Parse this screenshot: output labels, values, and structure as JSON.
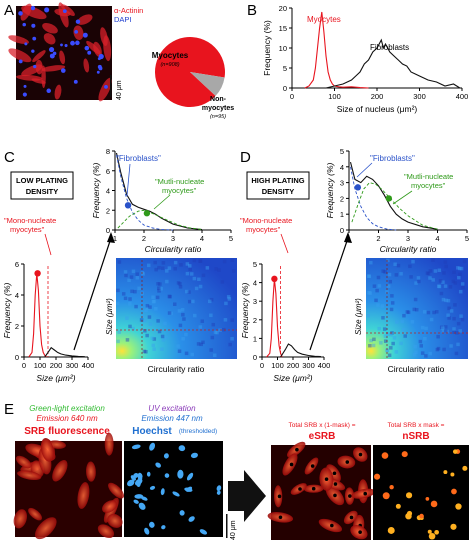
{
  "panels": {
    "A": {
      "label": "A",
      "stain_1": "α-Actinin",
      "stain_2": "DAPI",
      "scale": "40 μm",
      "pie": {
        "myocytes_label": "Myocytes",
        "myocytes_n": "(n=908)",
        "non_label_1": "Non-",
        "non_label_2": "myocytes",
        "non_n": "(n=95)"
      }
    },
    "B": {
      "label": "B",
      "myocytes_label": "Myocytes",
      "fibroblasts_label": "Fibroblasts"
    },
    "C": {
      "label": "C",
      "density_1": "LOW PLATING",
      "density_2": "DENSITY",
      "fibro_label": "\"Fibroblasts\"",
      "multi_label_1": "\"Mutli-nucleate",
      "multi_label_2": "myocytes\"",
      "mono_label_1": "\"Mono-nucleate",
      "mono_label_2": "myocytes\"",
      "heatmap_xlabel": "Circularity ratio",
      "heatmap_ylabel": "Size (μm²)"
    },
    "D": {
      "label": "D",
      "density_1": "HIGH PLATING",
      "density_2": "DENSITY",
      "fibro_label": "\"Fibroblasts\"",
      "multi_label_1": "\"Mutli-nucleate",
      "multi_label_2": "myocytes\"",
      "mono_label_1": "\"Mono-nucleate",
      "mono_label_2": "myocytes\"",
      "heatmap_xlabel": "Circularity ratio",
      "heatmap_ylabel": "Size (μm²)"
    },
    "E": {
      "label": "E",
      "srb_line1": "Green-light excitation",
      "srb_line2": "Emission 640 nm",
      "srb_title": "SRB fluorescence",
      "hoechst_line1": "UV excitation",
      "hoechst_line2": "Emission 447 nm",
      "hoechst_title": "Hoechst",
      "hoechst_note": "(thresholded)",
      "esrb_formula": "Total SRB x (1-mask) =",
      "esrb_title": "eSRB",
      "nsrb_formula": "Total SRB x mask =",
      "nsrb_title": "nSRB",
      "scale": "40 μm"
    }
  },
  "colors": {
    "myocyte_red": "#e8141e",
    "fibroblast_black": "#111111",
    "fibroblast_blue": "#2a52c9",
    "multinucleate_green": "#2f9a1a",
    "green_text": "#33bb33",
    "purple_text": "#8a3ab9",
    "blue_text": "#1f6fd0"
  },
  "chart_data": [
    {
      "panel": "B",
      "type": "line",
      "xlabel": "Size of nucleus (μm²)",
      "ylabel": "Frequency (%)",
      "xlim": [
        0,
        400
      ],
      "ylim": [
        0,
        20
      ],
      "xticks": [
        0,
        100,
        200,
        300,
        400
      ],
      "yticks": [
        0,
        5,
        10,
        15,
        20
      ],
      "series": [
        {
          "name": "Myocytes",
          "color": "#e8141e",
          "x": [
            30,
            40,
            50,
            55,
            60,
            65,
            70,
            75,
            80,
            85,
            90,
            95,
            100,
            110,
            120,
            140,
            160,
            180
          ],
          "y": [
            0,
            0.5,
            2,
            5,
            10,
            15,
            19,
            14,
            8,
            4,
            2,
            1,
            0.5,
            0.3,
            0.2,
            0.3,
            0.1,
            0
          ]
        },
        {
          "name": "Fibroblasts",
          "color": "#111111",
          "x": [
            80,
            100,
            120,
            140,
            150,
            160,
            170,
            180,
            190,
            200,
            210,
            215,
            220,
            230,
            240,
            250,
            260,
            270,
            280,
            290,
            300,
            310,
            320,
            340,
            360,
            380,
            395
          ],
          "y": [
            0,
            0.5,
            1,
            2,
            3,
            4,
            6,
            7,
            9,
            10,
            12,
            10,
            11,
            9,
            8,
            7,
            6,
            5.5,
            4,
            3.5,
            3,
            2.5,
            2,
            1.5,
            0.5,
            1,
            0
          ]
        }
      ]
    },
    {
      "panel": "C-top",
      "type": "line",
      "xlabel": "Circularity ratio",
      "ylabel": "Frequency (%)",
      "xlim": [
        1,
        5
      ],
      "ylim": [
        0,
        8
      ],
      "xticks": [
        1,
        2,
        3,
        4,
        5
      ],
      "yticks": [
        0,
        2,
        4,
        6,
        8
      ],
      "series": [
        {
          "color": "#111111",
          "x": [
            1.05,
            1.2,
            1.4,
            1.6,
            1.8,
            2.0,
            2.2,
            2.4,
            2.6,
            2.8,
            3.0,
            3.5,
            4.0
          ],
          "y": [
            7.8,
            5.8,
            3.6,
            2.6,
            2.3,
            2.1,
            1.9,
            1.6,
            1.2,
            0.9,
            0.6,
            0.2,
            0.05
          ]
        },
        {
          "color": "#2a52c9",
          "dashed": true,
          "x": [
            1.05,
            1.2,
            1.4,
            1.6,
            1.8,
            2.0,
            2.3,
            2.6,
            3.0
          ],
          "y": [
            7.6,
            5.4,
            3.2,
            1.8,
            1.0,
            0.5,
            0.2,
            0.05,
            0
          ]
        },
        {
          "color": "#2f9a1a",
          "dashed": true,
          "x": [
            1.1,
            1.3,
            1.5,
            1.8,
            2.0,
            2.2,
            2.5,
            2.8,
            3.2,
            3.6,
            4.0
          ],
          "y": [
            0.2,
            0.8,
            1.4,
            1.9,
            2.0,
            1.8,
            1.4,
            1.0,
            0.5,
            0.2,
            0.05
          ]
        }
      ],
      "markers": [
        {
          "color": "#2a52c9",
          "x": 1.45,
          "y": 2.5
        },
        {
          "color": "#2f9a1a",
          "x": 2.1,
          "y": 1.7
        }
      ]
    },
    {
      "panel": "C-left",
      "type": "line",
      "xlabel": "Size (μm²)",
      "ylabel": "Frequency (%)",
      "xlim": [
        0,
        400
      ],
      "ylim": [
        0,
        6
      ],
      "xticks": [
        0,
        100,
        200,
        300,
        400
      ],
      "yticks": [
        0,
        2,
        4,
        6
      ],
      "series": [
        {
          "color": "#e8141e",
          "x": [
            30,
            50,
            60,
            70,
            80,
            90,
            100,
            110,
            120,
            130,
            140
          ],
          "y": [
            0,
            0.3,
            1.5,
            4,
            5.4,
            4.3,
            2,
            0.8,
            0.3,
            0.1,
            0
          ]
        },
        {
          "color": "#111111",
          "x": [
            130,
            150,
            170,
            190,
            210,
            230,
            260,
            300,
            340,
            380
          ],
          "y": [
            0,
            0.3,
            0.6,
            0.45,
            0.3,
            0.2,
            0.12,
            0.07,
            0.04,
            0.02
          ]
        }
      ],
      "markers": [
        {
          "color": "#e8141e",
          "x": 85,
          "y": 5.4
        }
      ],
      "vline": 150
    },
    {
      "panel": "D-top",
      "type": "line",
      "xlabel": "Circularity ratio",
      "ylabel": "Frequency (%)",
      "xlim": [
        1,
        5
      ],
      "ylim": [
        0,
        5
      ],
      "xticks": [
        1,
        2,
        3,
        4,
        5
      ],
      "yticks": [
        0,
        1,
        2,
        3,
        4,
        5
      ],
      "series": [
        {
          "color": "#111111",
          "x": [
            1.05,
            1.2,
            1.4,
            1.6,
            1.8,
            2.0,
            2.2,
            2.4,
            2.6,
            2.8,
            3.0,
            3.5,
            4.0
          ],
          "y": [
            4.3,
            3.2,
            3.0,
            3.4,
            3.2,
            2.8,
            2.2,
            1.5,
            1.0,
            0.7,
            0.5,
            0.2,
            0.05
          ]
        },
        {
          "color": "#2a52c9",
          "dashed": true,
          "x": [
            1.05,
            1.2,
            1.4,
            1.6,
            1.8,
            2.0,
            2.3,
            2.6
          ],
          "y": [
            4.0,
            2.6,
            1.5,
            0.8,
            0.4,
            0.2,
            0.05,
            0
          ]
        },
        {
          "color": "#2f9a1a",
          "dashed": true,
          "x": [
            1.1,
            1.3,
            1.5,
            1.7,
            1.9,
            2.1,
            2.4,
            2.7,
            3.0,
            3.5,
            4.0
          ],
          "y": [
            0.5,
            1.6,
            2.6,
            3.0,
            2.9,
            2.6,
            2.0,
            1.4,
            0.9,
            0.3,
            0.05
          ]
        }
      ],
      "markers": [
        {
          "color": "#2a52c9",
          "x": 1.3,
          "y": 2.7
        },
        {
          "color": "#2f9a1a",
          "x": 2.35,
          "y": 2.0
        }
      ]
    },
    {
      "panel": "D-left",
      "type": "line",
      "xlabel": "Size (μm²)",
      "ylabel": "Frequency (%)",
      "xlim": [
        0,
        400
      ],
      "ylim": [
        0,
        5
      ],
      "xticks": [
        0,
        100,
        200,
        300,
        400
      ],
      "yticks": [
        0,
        1,
        2,
        3,
        4,
        5
      ],
      "series": [
        {
          "color": "#e8141e",
          "x": [
            30,
            50,
            60,
            70,
            80,
            90,
            100,
            110,
            120,
            130
          ],
          "y": [
            0,
            0.2,
            1,
            3,
            4.2,
            3.4,
            1.6,
            0.6,
            0.2,
            0
          ]
        },
        {
          "color": "#111111",
          "x": [
            120,
            150,
            170,
            190,
            210,
            230,
            260,
            300,
            340,
            380
          ],
          "y": [
            0,
            0.4,
            0.7,
            0.6,
            0.4,
            0.25,
            0.15,
            0.08,
            0.04,
            0.02
          ]
        }
      ],
      "markers": [
        {
          "color": "#e8141e",
          "x": 80,
          "y": 4.2
        }
      ],
      "vline": 120
    }
  ]
}
